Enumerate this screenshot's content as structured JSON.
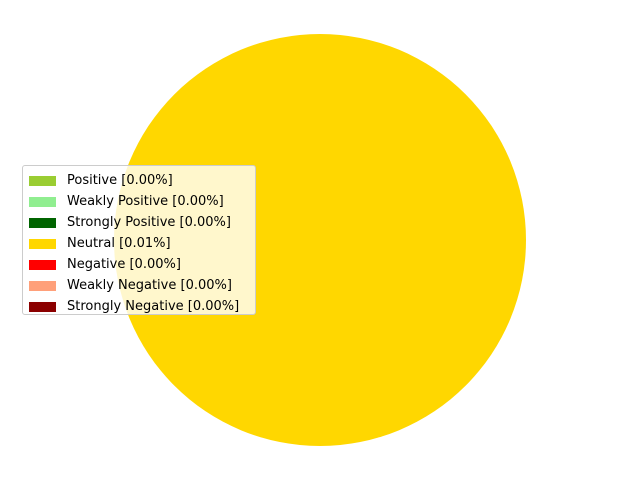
{
  "chart_data": {
    "type": "pie",
    "title": "",
    "legend_placement": "center-left",
    "slices": [
      {
        "label": "Positive [0.00%]",
        "value": 0.0,
        "color": "#9acd32"
      },
      {
        "label": "Weakly Positive [0.00%]",
        "value": 0.0,
        "color": "#90ee90"
      },
      {
        "label": "Strongly Positive [0.00%]",
        "value": 0.0,
        "color": "#006400"
      },
      {
        "label": "Neutral [0.01%]",
        "value": 0.01,
        "color": "#ffd700"
      },
      {
        "label": "Negative [0.00%]",
        "value": 0.0,
        "color": "#ff0000"
      },
      {
        "label": "Weakly Negative [0.00%]",
        "value": 0.0,
        "color": "#ffa07a"
      },
      {
        "label": "Strongly Negative [0.00%]",
        "value": 0.0,
        "color": "#8b0000"
      }
    ]
  }
}
